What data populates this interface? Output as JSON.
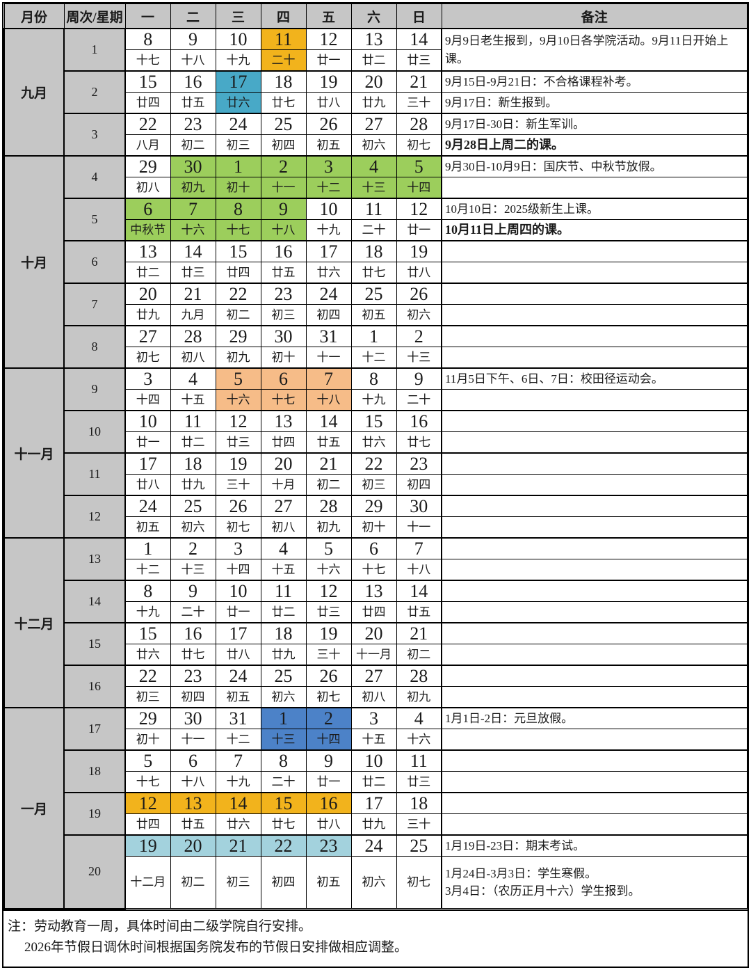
{
  "header": {
    "month": "月份",
    "week": "周次/星期",
    "days": [
      "一",
      "二",
      "三",
      "四",
      "五",
      "六",
      "日"
    ],
    "notes": "备注"
  },
  "colors": {
    "header_bg": "#c6c6c6",
    "amber": "#f2b31c",
    "teal": "#48a9c7",
    "green": "#9cce5c",
    "peach": "#f6bc88",
    "blue": "#4c82c8",
    "lightblue": "#a3d2dd"
  },
  "months": [
    {
      "name": "九月",
      "weeks": [
        0,
        1,
        2
      ]
    },
    {
      "name": "十月",
      "weeks": [
        3,
        4,
        5,
        6,
        7
      ]
    },
    {
      "name": "十一月",
      "weeks": [
        8,
        9,
        10,
        11
      ]
    },
    {
      "name": "十二月",
      "weeks": [
        12,
        13,
        14,
        15
      ]
    },
    {
      "name": "一月",
      "weeks": [
        16,
        17,
        18,
        19
      ]
    }
  ],
  "weeks": [
    {
      "num": "1",
      "dates": [
        "8",
        "9",
        "10",
        "11",
        "12",
        "13",
        "14"
      ],
      "lunar": [
        "十七",
        "十八",
        "十九",
        "二十",
        "廿一",
        "廿二",
        "廿三"
      ],
      "highlight": {
        "color": "amber",
        "cols": [
          3
        ],
        "rows": "both"
      },
      "notes": {
        "merged": "9月9日老生报到，9月10日各学院活动。9月11日开始上课。"
      }
    },
    {
      "num": "2",
      "dates": [
        "15",
        "16",
        "17",
        "18",
        "19",
        "20",
        "21"
      ],
      "lunar": [
        "廿四",
        "廿五",
        "廿六",
        "廿七",
        "廿八",
        "廿九",
        "三十"
      ],
      "highlight": {
        "color": "teal",
        "cols": [
          2
        ],
        "rows": "both"
      },
      "notes": {
        "top": {
          "text": "9月15日-9月21日：不合格课程补考。",
          "bold": false
        },
        "bottom": {
          "text": "9月17日：新生报到。",
          "bold": false
        }
      }
    },
    {
      "num": "3",
      "dates": [
        "22",
        "23",
        "24",
        "25",
        "26",
        "27",
        "28"
      ],
      "lunar": [
        "八月",
        "初二",
        "初三",
        "初四",
        "初五",
        "初六",
        "初七"
      ],
      "highlight": null,
      "notes": {
        "top": {
          "text": "9月17日-30日：新生军训。",
          "bold": false
        },
        "bottom": {
          "text": "9月28日上周二的课。",
          "bold": true
        }
      }
    },
    {
      "num": "4",
      "dates": [
        "29",
        "30",
        "1",
        "2",
        "3",
        "4",
        "5"
      ],
      "lunar": [
        "初八",
        "初九",
        "初十",
        "十一",
        "十二",
        "十三",
        "十四"
      ],
      "highlight": {
        "color": "green",
        "cols": [
          1,
          2,
          3,
          4,
          5,
          6
        ],
        "rows": "both"
      },
      "notes": {
        "top": {
          "text": "9月30日-10月9日：国庆节、中秋节放假。",
          "bold": false
        },
        "bottom": {
          "text": "",
          "bold": false
        }
      }
    },
    {
      "num": "5",
      "dates": [
        "6",
        "7",
        "8",
        "9",
        "10",
        "11",
        "12"
      ],
      "lunar": [
        "中秋节",
        "十六",
        "十七",
        "十八",
        "十九",
        "二十",
        "廿一"
      ],
      "highlight": {
        "color": "green",
        "cols": [
          0,
          1,
          2,
          3
        ],
        "rows": "both"
      },
      "notes": {
        "top": {
          "text": "10月10日：2025级新生上课。",
          "bold": false
        },
        "bottom": {
          "text": "10月11日上周四的课。",
          "bold": true
        }
      }
    },
    {
      "num": "6",
      "dates": [
        "13",
        "14",
        "15",
        "16",
        "17",
        "18",
        "19"
      ],
      "lunar": [
        "廿二",
        "廿三",
        "廿四",
        "廿五",
        "廿六",
        "廿七",
        "廿八"
      ],
      "highlight": null,
      "notes": {
        "top": {
          "text": "",
          "bold": false
        },
        "bottom": {
          "text": "",
          "bold": false
        }
      }
    },
    {
      "num": "7",
      "dates": [
        "20",
        "21",
        "22",
        "23",
        "24",
        "25",
        "26"
      ],
      "lunar": [
        "廿九",
        "九月",
        "初二",
        "初三",
        "初四",
        "初五",
        "初六"
      ],
      "highlight": null,
      "notes": {
        "top": {
          "text": "",
          "bold": false
        },
        "bottom": {
          "text": "",
          "bold": false
        }
      }
    },
    {
      "num": "8",
      "dates": [
        "27",
        "28",
        "29",
        "30",
        "31",
        "1",
        "2"
      ],
      "lunar": [
        "初七",
        "初八",
        "初九",
        "初十",
        "十一",
        "十二",
        "十三"
      ],
      "highlight": null,
      "notes": {
        "top": {
          "text": "",
          "bold": false
        },
        "bottom": {
          "text": "",
          "bold": false
        }
      }
    },
    {
      "num": "9",
      "dates": [
        "3",
        "4",
        "5",
        "6",
        "7",
        "8",
        "9"
      ],
      "lunar": [
        "十四",
        "十五",
        "十六",
        "十七",
        "十八",
        "十九",
        "二十"
      ],
      "highlight": {
        "color": "peach",
        "cols": [
          2,
          3,
          4
        ],
        "rows": "both"
      },
      "notes": {
        "top": {
          "text": "11月5日下午、6日、7日：校田径运动会。",
          "bold": false
        },
        "bottom": {
          "text": "",
          "bold": false
        }
      }
    },
    {
      "num": "10",
      "dates": [
        "10",
        "11",
        "12",
        "13",
        "14",
        "15",
        "16"
      ],
      "lunar": [
        "廿一",
        "廿二",
        "廿三",
        "廿四",
        "廿五",
        "廿六",
        "廿七"
      ],
      "highlight": null,
      "notes": {
        "top": {
          "text": "",
          "bold": false
        },
        "bottom": {
          "text": "",
          "bold": false
        }
      }
    },
    {
      "num": "11",
      "dates": [
        "17",
        "18",
        "19",
        "20",
        "21",
        "22",
        "23"
      ],
      "lunar": [
        "廿八",
        "廿九",
        "三十",
        "十月",
        "初二",
        "初三",
        "初四"
      ],
      "highlight": null,
      "notes": {
        "top": {
          "text": "",
          "bold": false
        },
        "bottom": {
          "text": "",
          "bold": false
        }
      }
    },
    {
      "num": "12",
      "dates": [
        "24",
        "25",
        "26",
        "27",
        "28",
        "29",
        "30"
      ],
      "lunar": [
        "初五",
        "初六",
        "初七",
        "初八",
        "初九",
        "初十",
        "十一"
      ],
      "highlight": null,
      "notes": {
        "top": {
          "text": "",
          "bold": false
        },
        "bottom": {
          "text": "",
          "bold": false
        }
      }
    },
    {
      "num": "13",
      "dates": [
        "1",
        "2",
        "3",
        "4",
        "5",
        "6",
        "7"
      ],
      "lunar": [
        "十二",
        "十三",
        "十四",
        "十五",
        "十六",
        "十七",
        "十八"
      ],
      "highlight": null,
      "notes": {
        "top": {
          "text": "",
          "bold": false
        },
        "bottom": {
          "text": "",
          "bold": false
        }
      }
    },
    {
      "num": "14",
      "dates": [
        "8",
        "9",
        "10",
        "11",
        "12",
        "13",
        "14"
      ],
      "lunar": [
        "十九",
        "二十",
        "廿一",
        "廿二",
        "廿三",
        "廿四",
        "廿五"
      ],
      "highlight": null,
      "notes": {
        "top": {
          "text": "",
          "bold": false
        },
        "bottom": {
          "text": "",
          "bold": false
        }
      }
    },
    {
      "num": "15",
      "dates": [
        "15",
        "16",
        "17",
        "18",
        "19",
        "20",
        "21"
      ],
      "lunar": [
        "廿六",
        "廿七",
        "廿八",
        "廿九",
        "三十",
        "十一月",
        "初二"
      ],
      "highlight": null,
      "notes": {
        "top": {
          "text": "",
          "bold": false
        },
        "bottom": {
          "text": "",
          "bold": false
        }
      }
    },
    {
      "num": "16",
      "dates": [
        "22",
        "23",
        "24",
        "25",
        "26",
        "27",
        "28"
      ],
      "lunar": [
        "初三",
        "初四",
        "初五",
        "初六",
        "初七",
        "初八",
        "初九"
      ],
      "highlight": null,
      "notes": {
        "top": {
          "text": "",
          "bold": false
        },
        "bottom": {
          "text": "",
          "bold": false
        }
      }
    },
    {
      "num": "17",
      "dates": [
        "29",
        "30",
        "31",
        "1",
        "2",
        "3",
        "4"
      ],
      "lunar": [
        "初十",
        "十一",
        "十二",
        "十三",
        "十四",
        "十五",
        "十六"
      ],
      "highlight": {
        "color": "blue",
        "cols": [
          3,
          4
        ],
        "rows": "both"
      },
      "notes": {
        "top": {
          "text": "1月1日-2日：元旦放假。",
          "bold": false
        },
        "bottom": {
          "text": "",
          "bold": false
        }
      }
    },
    {
      "num": "18",
      "dates": [
        "5",
        "6",
        "7",
        "8",
        "9",
        "10",
        "11"
      ],
      "lunar": [
        "十七",
        "十八",
        "十九",
        "二十",
        "廿一",
        "廿二",
        "廿三"
      ],
      "highlight": null,
      "notes": {
        "top": {
          "text": "",
          "bold": false
        },
        "bottom": {
          "text": "",
          "bold": false
        }
      }
    },
    {
      "num": "19",
      "dates": [
        "12",
        "13",
        "14",
        "15",
        "16",
        "17",
        "18"
      ],
      "lunar": [
        "廿四",
        "廿五",
        "廿六",
        "廿七",
        "廿八",
        "廿九",
        "三十"
      ],
      "highlight": {
        "color": "amber",
        "cols": [
          0,
          1,
          2,
          3,
          4
        ],
        "rows": "date"
      },
      "notes": {
        "top": {
          "text": "",
          "bold": false
        },
        "bottom": {
          "text": "",
          "bold": false
        }
      }
    },
    {
      "num": "20",
      "dates": [
        "19",
        "20",
        "21",
        "22",
        "23",
        "24",
        "25"
      ],
      "lunar": [
        "十二月",
        "初二",
        "初三",
        "初四",
        "初五",
        "初六",
        "初七"
      ],
      "highlight": {
        "color": "lightblue",
        "cols": [
          0,
          1,
          2,
          3,
          4
        ],
        "rows": "date"
      },
      "tall": true,
      "notes": {
        "top": {
          "text": "1月19日-23日：期末考试。",
          "bold": false
        },
        "bottom": {
          "lines": [
            "1月24日-3月3日：学生寒假。",
            "3月4日：（农历正月十六）学生报到。"
          ],
          "bold": false
        }
      }
    }
  ],
  "footer": {
    "line1": "注：劳动教育一周，具体时间由二级学院自行安排。",
    "line2": "2026年节假日调休时间根据国务院发布的节假日安排做相应调整。"
  }
}
